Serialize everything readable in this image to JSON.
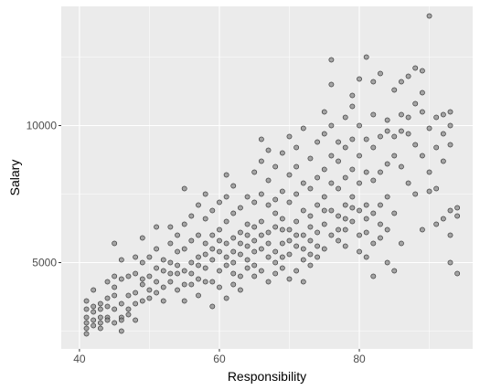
{
  "chart_data": {
    "type": "scatter",
    "title": "",
    "xlabel": "Responsibility",
    "ylabel": "Salary",
    "xlim": [
      37.4,
      96.2
    ],
    "ylim": [
      1850,
      14350
    ],
    "x_ticks": [
      40,
      60,
      80
    ],
    "x_tick_labels": [
      "40",
      "60",
      "80"
    ],
    "y_ticks": [
      5000,
      10000
    ],
    "y_tick_labels": [
      "5000",
      "10000"
    ],
    "grid": true,
    "legend": "none",
    "colors": {
      "panel_background": "#ebebeb",
      "grid_major": "#ffffff",
      "point_fill": "#8c8c8c",
      "point_stroke": "#2b2b2b"
    },
    "series": [
      {
        "points": [
          [
            41,
            2600
          ],
          [
            41,
            2800
          ],
          [
            41,
            3000
          ],
          [
            41,
            3300
          ],
          [
            41,
            3600
          ],
          [
            41,
            2400
          ],
          [
            42,
            2700
          ],
          [
            42,
            3200
          ],
          [
            42,
            3400
          ],
          [
            42,
            2900
          ],
          [
            42,
            4000
          ],
          [
            43,
            2600
          ],
          [
            43,
            3000
          ],
          [
            43,
            3500
          ],
          [
            43,
            3300
          ],
          [
            43,
            2800
          ],
          [
            44,
            3000
          ],
          [
            44,
            3400
          ],
          [
            44,
            4300
          ],
          [
            44,
            3700
          ],
          [
            44,
            2900
          ],
          [
            45,
            3300
          ],
          [
            45,
            4500
          ],
          [
            45,
            5700
          ],
          [
            45,
            3800
          ],
          [
            45,
            4100
          ],
          [
            45,
            2800
          ],
          [
            46,
            2500
          ],
          [
            46,
            3000
          ],
          [
            46,
            3500
          ],
          [
            46,
            4400
          ],
          [
            46,
            5100
          ],
          [
            46,
            2900
          ],
          [
            47,
            3300
          ],
          [
            47,
            3800
          ],
          [
            47,
            4500
          ],
          [
            47,
            3100
          ],
          [
            48,
            3900
          ],
          [
            48,
            4600
          ],
          [
            48,
            5200
          ],
          [
            48,
            2900
          ],
          [
            48,
            3500
          ],
          [
            49,
            3600
          ],
          [
            49,
            4200
          ],
          [
            49,
            5000
          ],
          [
            49,
            5900
          ],
          [
            49,
            4400
          ],
          [
            50,
            4000
          ],
          [
            50,
            4500
          ],
          [
            50,
            3700
          ],
          [
            50,
            5200
          ],
          [
            51,
            3900
          ],
          [
            51,
            4800
          ],
          [
            51,
            5500
          ],
          [
            51,
            6300
          ],
          [
            51,
            4300
          ],
          [
            52,
            4100
          ],
          [
            52,
            4700
          ],
          [
            52,
            3600
          ],
          [
            52,
            5100
          ],
          [
            53,
            4300
          ],
          [
            53,
            5000
          ],
          [
            53,
            5700
          ],
          [
            53,
            4600
          ],
          [
            53,
            6300
          ],
          [
            54,
            4000
          ],
          [
            54,
            4600
          ],
          [
            54,
            5400
          ],
          [
            54,
            6000
          ],
          [
            54,
            4900
          ],
          [
            55,
            3600
          ],
          [
            55,
            4700
          ],
          [
            55,
            5500
          ],
          [
            55,
            6400
          ],
          [
            55,
            7700
          ],
          [
            55,
            4200
          ],
          [
            56,
            4200
          ],
          [
            56,
            5000
          ],
          [
            56,
            5800
          ],
          [
            56,
            6700
          ],
          [
            56,
            4600
          ],
          [
            57,
            4400
          ],
          [
            57,
            5200
          ],
          [
            57,
            6000
          ],
          [
            57,
            7100
          ],
          [
            57,
            3800
          ],
          [
            57,
            4900
          ],
          [
            58,
            4800
          ],
          [
            58,
            5700
          ],
          [
            58,
            6600
          ],
          [
            58,
            7500
          ],
          [
            58,
            4300
          ],
          [
            58,
            5300
          ],
          [
            59,
            4300
          ],
          [
            59,
            5100
          ],
          [
            59,
            6000
          ],
          [
            59,
            6900
          ],
          [
            59,
            3400
          ],
          [
            59,
            5500
          ],
          [
            60,
            4700
          ],
          [
            60,
            5400
          ],
          [
            60,
            6200
          ],
          [
            60,
            7200
          ],
          [
            60,
            4100
          ],
          [
            60,
            5800
          ],
          [
            61,
            4900
          ],
          [
            61,
            5700
          ],
          [
            61,
            6500
          ],
          [
            61,
            7400
          ],
          [
            61,
            3700
          ],
          [
            61,
            8200
          ],
          [
            61,
            5200
          ],
          [
            62,
            4200
          ],
          [
            62,
            5000
          ],
          [
            62,
            5900
          ],
          [
            62,
            6800
          ],
          [
            62,
            7800
          ],
          [
            62,
            4600
          ],
          [
            62,
            5400
          ],
          [
            63,
            4500
          ],
          [
            63,
            5300
          ],
          [
            63,
            6100
          ],
          [
            63,
            7000
          ],
          [
            63,
            4000
          ],
          [
            63,
            5700
          ],
          [
            64,
            4800
          ],
          [
            64,
            5600
          ],
          [
            64,
            6400
          ],
          [
            64,
            7400
          ],
          [
            64,
            5100
          ],
          [
            64,
            6000
          ],
          [
            65,
            4500
          ],
          [
            65,
            5400
          ],
          [
            65,
            6300
          ],
          [
            65,
            7200
          ],
          [
            65,
            8300
          ],
          [
            65,
            4900
          ],
          [
            65,
            5800
          ],
          [
            66,
            4700
          ],
          [
            66,
            5500
          ],
          [
            66,
            6500
          ],
          [
            66,
            7500
          ],
          [
            66,
            8700
          ],
          [
            66,
            9500
          ],
          [
            66,
            6000
          ],
          [
            67,
            4300
          ],
          [
            67,
            5200
          ],
          [
            67,
            6100
          ],
          [
            67,
            7100
          ],
          [
            67,
            8000
          ],
          [
            67,
            9100
          ],
          [
            67,
            5700
          ],
          [
            68,
            4600
          ],
          [
            68,
            5400
          ],
          [
            68,
            6300
          ],
          [
            68,
            7300
          ],
          [
            68,
            8500
          ],
          [
            68,
            5000
          ],
          [
            68,
            6800
          ],
          [
            69,
            4800
          ],
          [
            69,
            5700
          ],
          [
            69,
            6600
          ],
          [
            69,
            7600
          ],
          [
            69,
            9000
          ],
          [
            69,
            5200
          ],
          [
            69,
            6200
          ],
          [
            70,
            4400
          ],
          [
            70,
            5300
          ],
          [
            70,
            6200
          ],
          [
            70,
            7200
          ],
          [
            70,
            8200
          ],
          [
            70,
            9600
          ],
          [
            70,
            5800
          ],
          [
            71,
            4700
          ],
          [
            71,
            5600
          ],
          [
            71,
            6500
          ],
          [
            71,
            7500
          ],
          [
            71,
            8500
          ],
          [
            71,
            9200
          ],
          [
            71,
            6000
          ],
          [
            72,
            4300
          ],
          [
            72,
            5100
          ],
          [
            72,
            6000
          ],
          [
            72,
            6900
          ],
          [
            72,
            7900
          ],
          [
            72,
            9900
          ],
          [
            72,
            5500
          ],
          [
            73,
            4900
          ],
          [
            73,
            5800
          ],
          [
            73,
            6700
          ],
          [
            73,
            7700
          ],
          [
            73,
            8800
          ],
          [
            73,
            5300
          ],
          [
            73,
            6300
          ],
          [
            74,
            5200
          ],
          [
            74,
            6100
          ],
          [
            74,
            7100
          ],
          [
            74,
            8100
          ],
          [
            74,
            9400
          ],
          [
            74,
            5600
          ],
          [
            75,
            5500
          ],
          [
            75,
            6400
          ],
          [
            75,
            7400
          ],
          [
            75,
            8400
          ],
          [
            75,
            9700
          ],
          [
            75,
            10500
          ],
          [
            75,
            6900
          ],
          [
            76,
            6000
          ],
          [
            76,
            6900
          ],
          [
            76,
            7900
          ],
          [
            76,
            8900
          ],
          [
            76,
            10000
          ],
          [
            76,
            12400
          ],
          [
            76,
            11500
          ],
          [
            77,
            5800
          ],
          [
            77,
            6700
          ],
          [
            77,
            7700
          ],
          [
            77,
            8700
          ],
          [
            77,
            9400
          ],
          [
            77,
            6200
          ],
          [
            78,
            6200
          ],
          [
            78,
            7100
          ],
          [
            78,
            8100
          ],
          [
            78,
            9200
          ],
          [
            78,
            10300
          ],
          [
            78,
            5600
          ],
          [
            78,
            6600
          ],
          [
            79,
            6500
          ],
          [
            79,
            7400
          ],
          [
            79,
            8400
          ],
          [
            79,
            9500
          ],
          [
            79,
            10700
          ],
          [
            79,
            11100
          ],
          [
            79,
            7000
          ],
          [
            80,
            6000
          ],
          [
            80,
            6900
          ],
          [
            80,
            7900
          ],
          [
            80,
            8900
          ],
          [
            80,
            10000
          ],
          [
            80,
            11700
          ],
          [
            80,
            5400
          ],
          [
            81,
            5200
          ],
          [
            81,
            6100
          ],
          [
            81,
            7100
          ],
          [
            81,
            8300
          ],
          [
            81,
            9500
          ],
          [
            81,
            12500
          ],
          [
            81,
            6600
          ],
          [
            82,
            4500
          ],
          [
            82,
            5700
          ],
          [
            82,
            6800
          ],
          [
            82,
            8000
          ],
          [
            82,
            9200
          ],
          [
            82,
            10400
          ],
          [
            82,
            11600
          ],
          [
            83,
            5900
          ],
          [
            83,
            7100
          ],
          [
            83,
            8300
          ],
          [
            83,
            9600
          ],
          [
            83,
            11900
          ],
          [
            83,
            6400
          ],
          [
            84,
            6200
          ],
          [
            84,
            7400
          ],
          [
            84,
            8600
          ],
          [
            84,
            9800
          ],
          [
            84,
            5000
          ],
          [
            84,
            10200
          ],
          [
            85,
            4700
          ],
          [
            85,
            6800
          ],
          [
            85,
            8900
          ],
          [
            85,
            9600
          ],
          [
            85,
            11300
          ],
          [
            86,
            5700
          ],
          [
            86,
            8500
          ],
          [
            86,
            9800
          ],
          [
            86,
            10400
          ],
          [
            86,
            11600
          ],
          [
            87,
            7900
          ],
          [
            87,
            9700
          ],
          [
            87,
            10300
          ],
          [
            87,
            11800
          ],
          [
            88,
            7500
          ],
          [
            88,
            9300
          ],
          [
            88,
            10800
          ],
          [
            88,
            12100
          ],
          [
            89,
            6200
          ],
          [
            89,
            8900
          ],
          [
            89,
            10500
          ],
          [
            89,
            11200
          ],
          [
            89,
            12000
          ],
          [
            90,
            7600
          ],
          [
            90,
            8300
          ],
          [
            90,
            9900
          ],
          [
            90,
            14000
          ],
          [
            91,
            6400
          ],
          [
            91,
            7700
          ],
          [
            91,
            9200
          ],
          [
            91,
            10300
          ],
          [
            92,
            6600
          ],
          [
            92,
            8700
          ],
          [
            92,
            9700
          ],
          [
            92,
            10400
          ],
          [
            93,
            5000
          ],
          [
            93,
            6000
          ],
          [
            93,
            6900
          ],
          [
            93,
            9300
          ],
          [
            93,
            10000
          ],
          [
            93,
            10500
          ],
          [
            94,
            4600
          ],
          [
            94,
            6700
          ],
          [
            94,
            7000
          ]
        ]
      }
    ]
  }
}
